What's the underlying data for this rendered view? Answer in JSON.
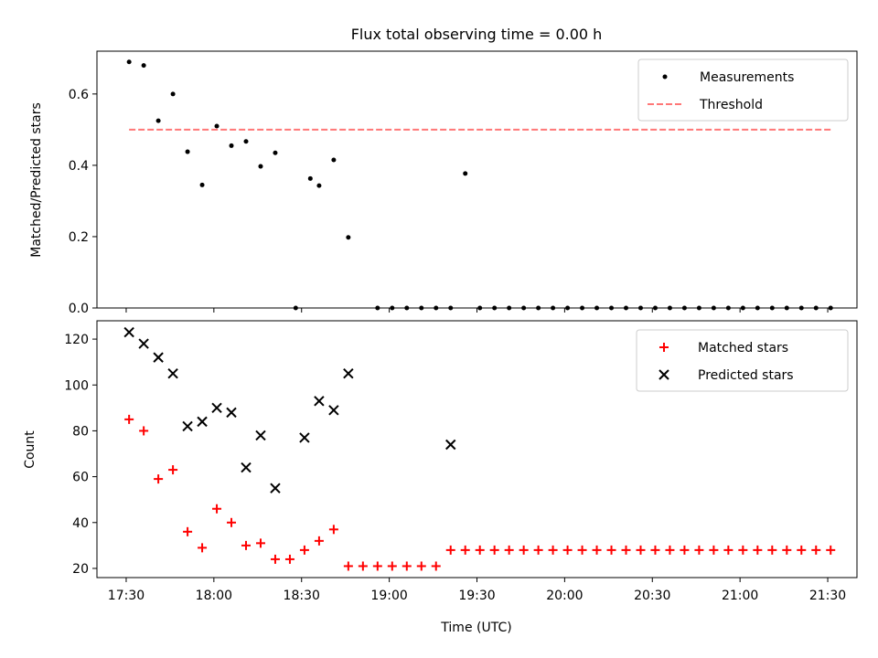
{
  "figure": {
    "title": "Flux total observing time = 0.00 h",
    "xlabel": "Time (UTC)",
    "xticks": [
      "17:30",
      "18:00",
      "18:30",
      "19:00",
      "19:30",
      "20:00",
      "20:30",
      "21:00",
      "21:30"
    ]
  },
  "chart_data": [
    {
      "type": "scatter",
      "title": "Flux total observing time = 0.00 h",
      "xlabel": "",
      "ylabel": "Matched/Predicted stars",
      "xlim": [
        "17:20",
        "21:40"
      ],
      "ylim": [
        0,
        0.72
      ],
      "yticks": [
        "0.0",
        "0.2",
        "0.4",
        "0.6"
      ],
      "legend_position": "top-right",
      "threshold": {
        "name": "Threshold",
        "value": 0.5,
        "x": [
          "17:31",
          "21:31"
        ],
        "color": "#ff7777",
        "style": "dashed"
      },
      "series": [
        {
          "name": "Measurements",
          "color": "#000000",
          "marker": "dot",
          "x": [
            "17:31",
            "17:36",
            "17:41",
            "17:46",
            "17:51",
            "17:56",
            "18:01",
            "18:06",
            "18:11",
            "18:16",
            "18:21",
            "18:28",
            "18:33",
            "18:36",
            "18:41",
            "18:46",
            "18:56",
            "19:01",
            "19:06",
            "19:11",
            "19:16",
            "19:21",
            "19:26",
            "19:31",
            "19:36",
            "19:41",
            "19:46",
            "19:51",
            "19:56",
            "20:01",
            "20:06",
            "20:11",
            "20:16",
            "20:21",
            "20:26",
            "20:31",
            "20:36",
            "20:41",
            "20:46",
            "20:51",
            "20:56",
            "21:01",
            "21:06",
            "21:11",
            "21:16",
            "21:21",
            "21:26",
            "21:31"
          ],
          "y": [
            0.69,
            0.68,
            0.525,
            0.6,
            0.438,
            0.345,
            0.51,
            0.455,
            0.467,
            0.397,
            0.435,
            0.0,
            0.363,
            0.343,
            0.415,
            0.198,
            0.0,
            0.0,
            0.0,
            0.0,
            0.0,
            0.0,
            0.377,
            0.0,
            0.0,
            0.0,
            0.0,
            0.0,
            0.0,
            0.0,
            0.0,
            0.0,
            0.0,
            0.0,
            0.0,
            0.0,
            0.0,
            0.0,
            0.0,
            0.0,
            0.0,
            0.0,
            0.0,
            0.0,
            0.0,
            0.0,
            0.0,
            0.0
          ]
        }
      ]
    },
    {
      "type": "scatter",
      "xlabel": "Time (UTC)",
      "ylabel": "Count",
      "xlim": [
        "17:20",
        "21:40"
      ],
      "ylim": [
        16,
        128
      ],
      "yticks": [
        "20",
        "40",
        "60",
        "80",
        "100",
        "120"
      ],
      "legend_position": "top-right",
      "series": [
        {
          "name": "Matched stars",
          "color": "#ff0000",
          "marker": "plus",
          "x": [
            "17:31",
            "17:36",
            "17:41",
            "17:46",
            "17:51",
            "17:56",
            "18:01",
            "18:06",
            "18:11",
            "18:16",
            "18:21",
            "18:26",
            "18:31",
            "18:36",
            "18:41",
            "18:46",
            "18:51",
            "18:56",
            "19:01",
            "19:06",
            "19:11",
            "19:16",
            "19:21",
            "19:26",
            "19:31",
            "19:36",
            "19:41",
            "19:46",
            "19:51",
            "19:56",
            "20:01",
            "20:06",
            "20:11",
            "20:16",
            "20:21",
            "20:26",
            "20:31",
            "20:36",
            "20:41",
            "20:46",
            "20:51",
            "20:56",
            "21:01",
            "21:06",
            "21:11",
            "21:16",
            "21:21",
            "21:26",
            "21:31"
          ],
          "y": [
            85,
            80,
            59,
            63,
            36,
            29,
            46,
            40,
            30,
            31,
            24,
            24,
            28,
            32,
            37,
            21,
            21,
            21,
            21,
            21,
            21,
            21,
            28,
            28,
            28,
            28,
            28,
            28,
            28,
            28,
            28,
            28,
            28,
            28,
            28,
            28,
            28,
            28,
            28,
            28,
            28,
            28,
            28,
            28,
            28,
            28,
            28,
            28,
            28
          ]
        },
        {
          "name": "Predicted stars",
          "color": "#000000",
          "marker": "x",
          "x": [
            "17:31",
            "17:36",
            "17:41",
            "17:46",
            "17:51",
            "17:56",
            "18:01",
            "18:06",
            "18:11",
            "18:16",
            "18:21",
            "18:31",
            "18:36",
            "18:41",
            "18:46",
            "19:21"
          ],
          "y": [
            123,
            118,
            112,
            105,
            82,
            84,
            90,
            88,
            64,
            78,
            55,
            77,
            93,
            89,
            105,
            74
          ]
        }
      ]
    }
  ]
}
